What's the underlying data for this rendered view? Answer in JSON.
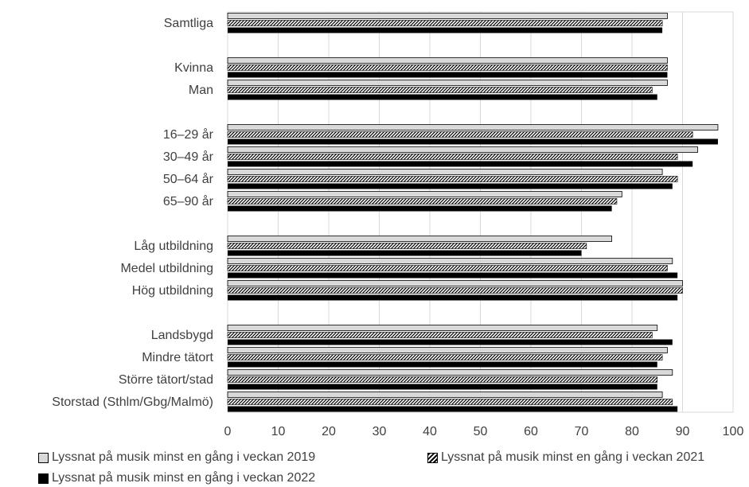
{
  "chart_data": {
    "type": "bar",
    "orientation": "horizontal",
    "categories": [
      "Samtliga",
      "Kvinna",
      "Man",
      "16–29 år",
      "30–49 år",
      "50–64 år",
      "65–90 år",
      "Låg utbildning",
      "Medel utbildning",
      "Hög utbildning",
      "Landsbygd",
      "Mindre tätort",
      "Större tätort/stad",
      "Storstad (Sthlm/Gbg/Malmö)"
    ],
    "series": [
      {
        "name": "Lyssnat på musik minst en gång i veckan 2019",
        "pattern": "light-gray",
        "color": "#d9d9d9",
        "values": [
          87,
          87,
          87,
          97,
          93,
          86,
          78,
          76,
          88,
          90,
          85,
          87,
          88,
          86
        ]
      },
      {
        "name": "Lyssnat på musik minst en gång i veckan 2021",
        "pattern": "hatched",
        "color": "#000000",
        "values": [
          86,
          87,
          84,
          92,
          89,
          89,
          77,
          71,
          87,
          90,
          84,
          86,
          85,
          88
        ]
      },
      {
        "name": "Lyssnat på musik minst en gång i veckan 2022",
        "pattern": "solid",
        "color": "#000000",
        "values": [
          86,
          87,
          85,
          97,
          92,
          88,
          76,
          70,
          89,
          89,
          88,
          85,
          85,
          89
        ]
      }
    ],
    "xlim": [
      0,
      100
    ],
    "xticks": [
      0,
      10,
      20,
      30,
      40,
      50,
      60,
      70,
      80,
      90,
      100
    ],
    "grid": true,
    "legend_position": "bottom",
    "title": "",
    "xlabel": "",
    "ylabel": ""
  },
  "legend": {
    "item_2019": "Lyssnat på musik minst en gång i veckan 2019",
    "item_2021": "Lyssnat på musik minst en gång i veckan 2021",
    "item_2022": "Lyssnat på musik minst en gång i veckan 2022"
  }
}
